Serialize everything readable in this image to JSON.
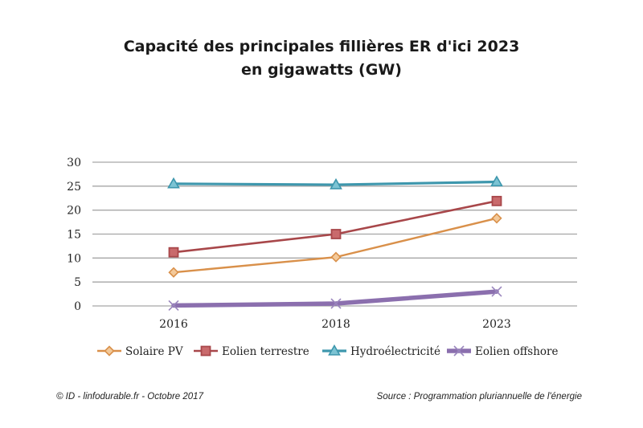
{
  "chart_data": {
    "type": "line",
    "title": "Capacité des principales fillières ER d'ici 2023",
    "subtitle": "en gigawatts (GW)",
    "categories": [
      "2016",
      "2018",
      "2023"
    ],
    "ylim": [
      0,
      30
    ],
    "yticks": [
      0,
      5,
      10,
      15,
      20,
      25,
      30
    ],
    "grid": true,
    "legend_position": "bottom",
    "series": [
      {
        "name": "Solaire PV",
        "values": [
          7.0,
          10.2,
          18.3
        ],
        "color": "#d9904a",
        "marker": "diamond"
      },
      {
        "name": "Eolien terrestre",
        "values": [
          11.2,
          15.0,
          21.9
        ],
        "color": "#a8474a",
        "marker": "square"
      },
      {
        "name": "Hydroélectricité",
        "values": [
          25.5,
          25.3,
          25.9
        ],
        "color": "#3e97ad",
        "marker": "triangle"
      },
      {
        "name": "Eolien offshore",
        "values": [
          0.1,
          0.5,
          3.0
        ],
        "color": "#8b6fae",
        "marker": "x"
      }
    ]
  },
  "footer": {
    "credit": "© ID - linfodurable.fr - Octobre 2017",
    "source": "Source : Programmation pluriannuelle de l'énergie"
  }
}
